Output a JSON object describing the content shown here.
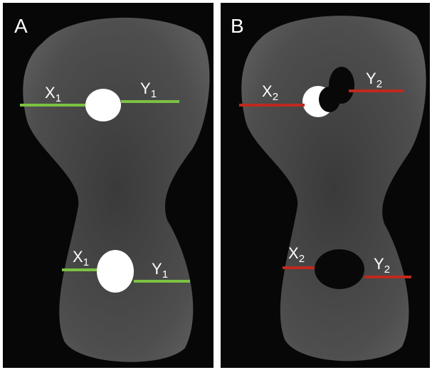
{
  "panels": [
    {
      "label": "A",
      "annotations": [
        {
          "main": "X",
          "sub": "1"
        },
        {
          "main": "Y",
          "sub": "1"
        },
        {
          "main": "X",
          "sub": "1"
        },
        {
          "main": "Y",
          "sub": "1"
        }
      ]
    },
    {
      "label": "B",
      "annotations": [
        {
          "main": "X",
          "sub": "2"
        },
        {
          "main": "Y",
          "sub": "2"
        },
        {
          "main": "X",
          "sub": "2"
        },
        {
          "main": "Y",
          "sub": "2"
        }
      ]
    }
  ]
}
